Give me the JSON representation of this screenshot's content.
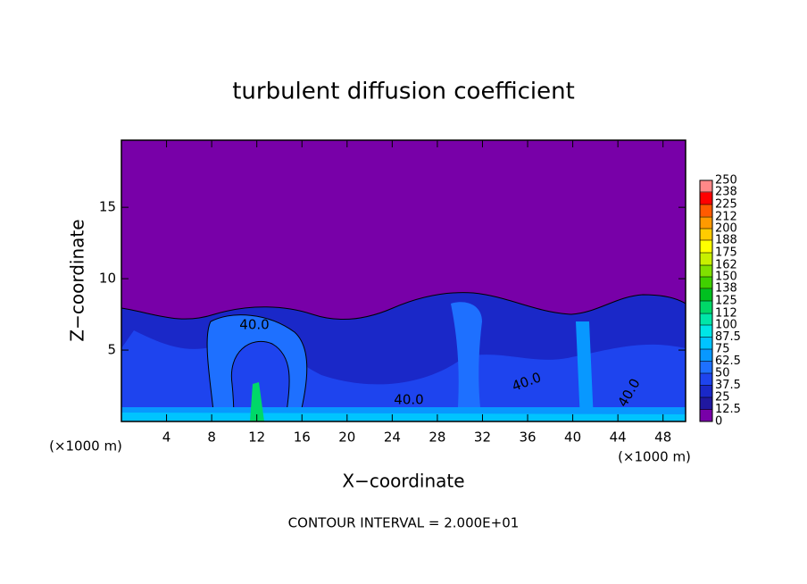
{
  "chart_data": {
    "type": "contour",
    "title": "turbulent diffusion coefficient",
    "xlabel": "X−coordinate",
    "ylabel": "Z−coordinate",
    "x_unit_left": "(×1000 m)",
    "x_unit_right": "(×1000 m)",
    "footer": "CONTOUR INTERVAL = 2.000E+01",
    "xlim": [
      0,
      50
    ],
    "xticks": [
      4,
      8,
      12,
      16,
      20,
      24,
      28,
      32,
      36,
      40,
      44,
      48
    ],
    "ylim": [
      0,
      19.7
    ],
    "yticks": [
      5,
      10,
      15
    ],
    "contour_labels": [
      "40.0",
      "40.0",
      "40.0",
      "40.0"
    ],
    "colorbar": {
      "lim": [
        0,
        250
      ],
      "ticks": [
        0,
        12.5,
        25,
        37.5,
        50,
        62.5,
        75,
        87.5,
        100,
        112,
        125,
        138,
        150,
        162,
        175,
        188,
        200,
        212,
        225,
        238,
        250
      ],
      "colors": [
        "#7800a8",
        "#2018a0",
        "#1a28c8",
        "#1e44ee",
        "#1e70ff",
        "#0898ff",
        "#00c4ff",
        "#00e6e6",
        "#00e6a8",
        "#00d868",
        "#00c020",
        "#40d000",
        "#80e000",
        "#c8f000",
        "#ffff00",
        "#ffcc00",
        "#ff9a00",
        "#ff5a00",
        "#ff0000",
        "#ff8888"
      ]
    }
  }
}
